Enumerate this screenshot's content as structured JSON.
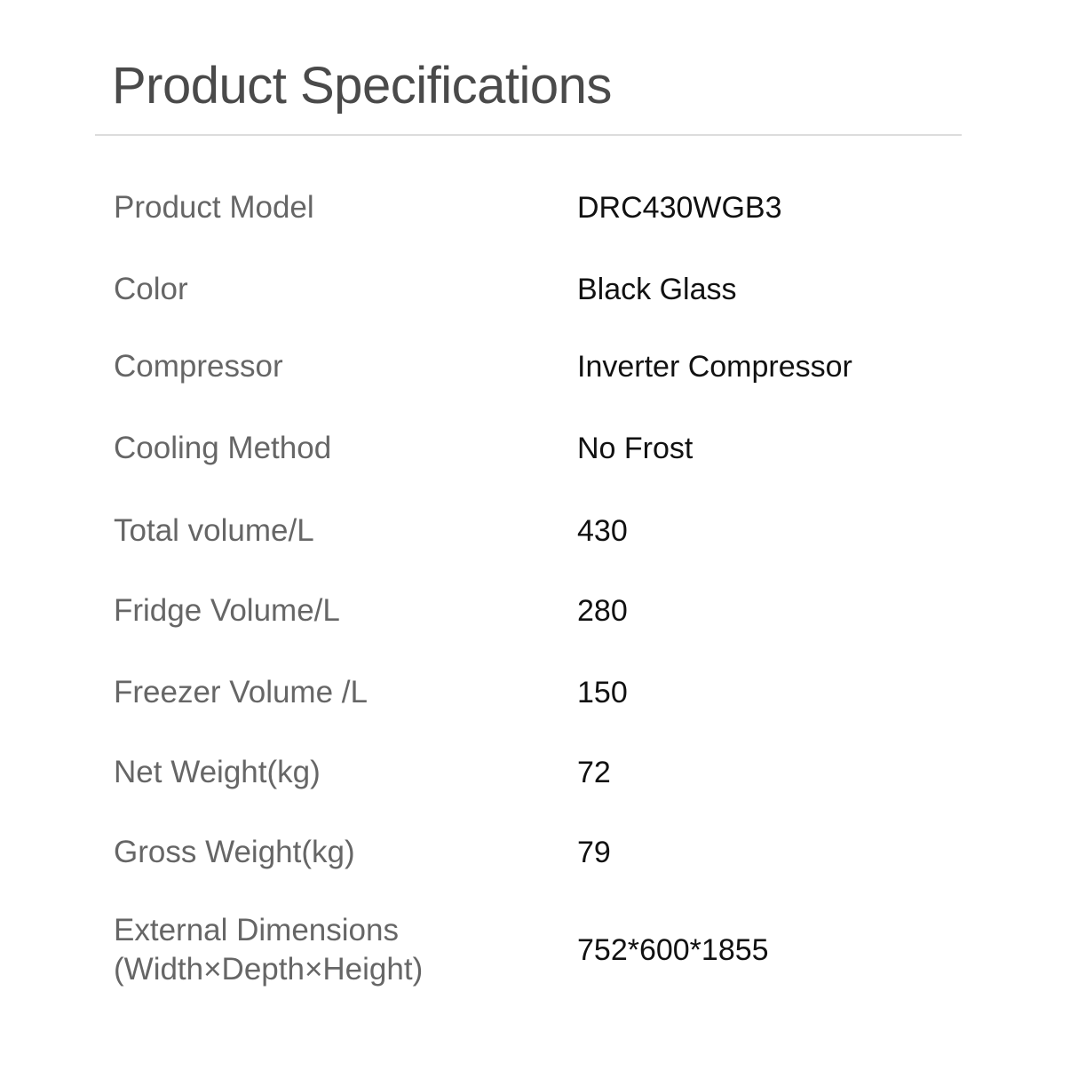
{
  "title": "Product Specifications",
  "specs": [
    {
      "label": "Product Model",
      "value": "DRC430WGB3"
    },
    {
      "label": "Color",
      "value": "Black Glass"
    },
    {
      "label": "Compressor",
      "value": "Inverter Compressor"
    },
    {
      "label": "Cooling Method",
      "value": "No Frost"
    },
    {
      "label": "Total volume/L",
      "value": "430"
    },
    {
      "label": "Fridge Volume/L",
      "value": "280"
    },
    {
      "label": "Freezer Volume /L",
      "value": "150"
    },
    {
      "label": "Net Weight(kg)",
      "value": "72"
    },
    {
      "label": "Gross Weight(kg)",
      "value": "79"
    },
    {
      "label": "External Dimensions",
      "label_line2": "(Width×Depth×Height)",
      "value": "752*600*1855"
    }
  ]
}
